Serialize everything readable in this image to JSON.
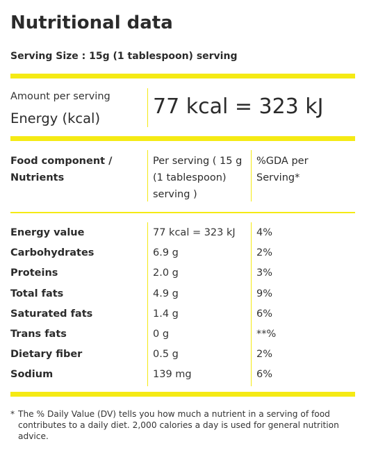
{
  "title": "Nutritional data",
  "serving_size": "Serving Size : 15g (1 tablespoon) serving",
  "energy": {
    "amount_label": "Amount per serving",
    "label": "Energy (kcal)",
    "value": "77 kcal = 323 kJ"
  },
  "table": {
    "headers": {
      "component_line1": "Food component /",
      "component_line2": "Nutrients",
      "serving_line1": "Per serving ( 15 g",
      "serving_line2": "(1 tablespoon)",
      "serving_line3": "serving )",
      "gda_line1": "%GDA per",
      "gda_line2": "Serving*"
    },
    "rows": [
      {
        "name": "Energy value",
        "serving": "77 kcal = 323 kJ",
        "gda": "4%"
      },
      {
        "name": "Carbohydrates",
        "serving": "6.9 g",
        "gda": "2%"
      },
      {
        "name": "Proteins",
        "serving": "2.0 g",
        "gda": "3%"
      },
      {
        "name": "Total fats",
        "serving": "4.9 g",
        "gda": "9%"
      },
      {
        "name": "Saturated fats",
        "serving": "1.4 g",
        "gda": "6%"
      },
      {
        "name": "Trans fats",
        "serving": "0 g",
        "gda": "**%"
      },
      {
        "name": "Dietary fiber",
        "serving": "0.5 g",
        "gda": "2%"
      },
      {
        "name": "Sodium",
        "serving": "139 mg",
        "gda": "6%"
      }
    ]
  },
  "footnote": {
    "marker": "*",
    "text": "The % Daily Value (DV) tells you how much a nutrient in a serving of food contributes to a daily diet. 2,000 calories a day is used for general nutrition advice."
  },
  "colors": {
    "accent": "#f5ea14",
    "text": "#2b2b2b"
  }
}
